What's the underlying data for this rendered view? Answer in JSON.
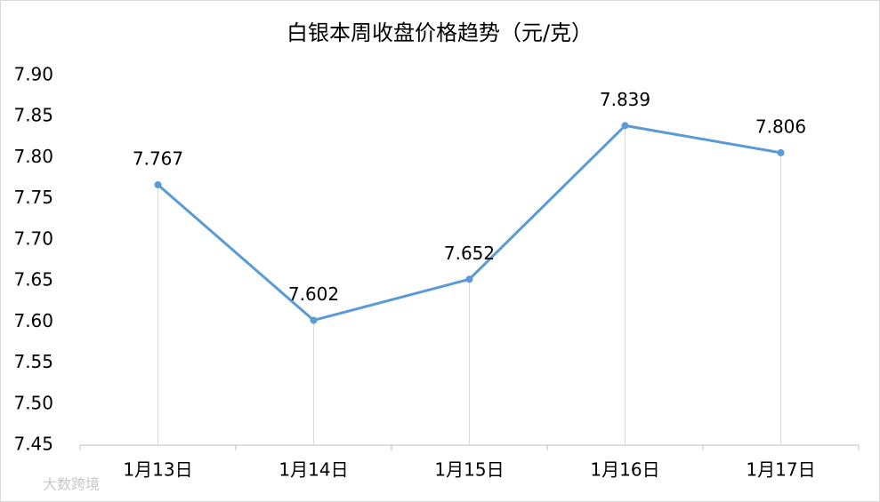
{
  "chart_data": {
    "type": "line",
    "title": "白银本周收盘价格趋势（元/克）",
    "categories": [
      "1月13日",
      "1月14日",
      "1月15日",
      "1月16日",
      "1月17日"
    ],
    "values": [
      7.767,
      7.602,
      7.652,
      7.839,
      7.806
    ],
    "color": "#5b9bd5",
    "ylim": [
      7.45,
      7.9
    ],
    "yticks": [
      7.45,
      {
        "value": 7.5,
        "label": "7.50"
      },
      7.55,
      {
        "value": 7.6,
        "label": "7.60"
      },
      7.65,
      {
        "value": 7.7,
        "label": "7.70"
      },
      7.75,
      {
        "value": 7.8,
        "label": "7.80"
      },
      7.85,
      {
        "value": 7.9,
        "label": "7.90"
      }
    ],
    "grid": false,
    "drop_lines": true,
    "watermark": "大数跨境"
  }
}
